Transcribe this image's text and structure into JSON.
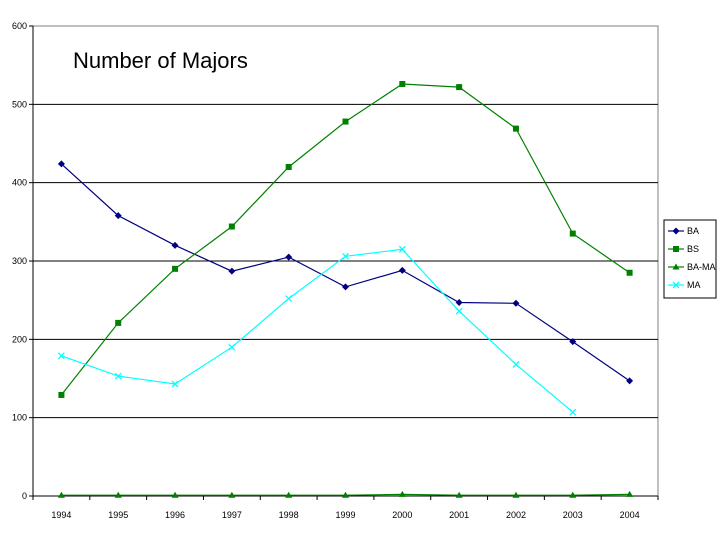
{
  "chart_data": {
    "type": "line",
    "title": "Number of Majors",
    "xlabel": "",
    "ylabel": "",
    "categories": [
      "1994",
      "1995",
      "1996",
      "1997",
      "1998",
      "1999",
      "2000",
      "2001",
      "2002",
      "2003",
      "2004"
    ],
    "ylim": [
      0,
      600
    ],
    "yticks": [
      0,
      100,
      200,
      300,
      400,
      500,
      600
    ],
    "grid": "horizontal",
    "legend_position": "right",
    "series": [
      {
        "name": "BA",
        "color": "#000080",
        "marker": "diamond",
        "values": [
          424,
          358,
          320,
          287,
          305,
          267,
          288,
          247,
          246,
          197,
          147
        ]
      },
      {
        "name": "BS",
        "color": "#008000",
        "marker": "square",
        "values": [
          129,
          221,
          290,
          344,
          420,
          478,
          526,
          522,
          469,
          335,
          285
        ]
      },
      {
        "name": "BA-MA",
        "color": "#008000",
        "marker": "triangle",
        "values": [
          1,
          1,
          1,
          1,
          1,
          1,
          2,
          1,
          1,
          1,
          2
        ]
      },
      {
        "name": "MA",
        "color": "#00FFFF",
        "marker": "x",
        "values": [
          179,
          153,
          143,
          190,
          252,
          306,
          315,
          236,
          168,
          107,
          null
        ]
      }
    ]
  }
}
